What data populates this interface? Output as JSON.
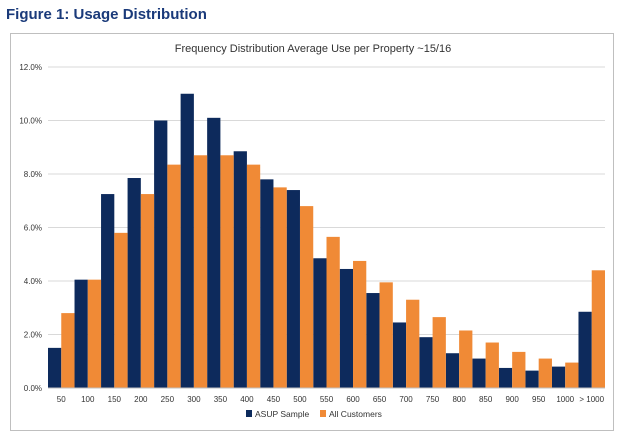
{
  "figure_title": "Figure 1: Usage Distribution",
  "chart_data": {
    "type": "bar",
    "title": "Frequency Distribution Average Use per Property ~15/16",
    "xlabel": "",
    "ylabel": "",
    "ylim": [
      0,
      12
    ],
    "ytick_format": "percent_1dp",
    "yticks": [
      "0.0%",
      "2.0%",
      "4.0%",
      "6.0%",
      "8.0%",
      "10.0%",
      "12.0%"
    ],
    "categories": [
      "50",
      "100",
      "150",
      "200",
      "250",
      "300",
      "350",
      "400",
      "450",
      "500",
      "550",
      "600",
      "650",
      "700",
      "750",
      "800",
      "850",
      "900",
      "950",
      "1000",
      "> 1000"
    ],
    "series": [
      {
        "name": "ASUP Sample",
        "color": "#0d2a5c",
        "values": [
          1.5,
          4.05,
          7.25,
          7.85,
          10.0,
          11.0,
          10.1,
          8.85,
          7.8,
          7.4,
          4.85,
          4.45,
          3.55,
          2.45,
          1.9,
          1.3,
          1.1,
          0.75,
          0.65,
          0.8,
          2.85
        ]
      },
      {
        "name": "All Customers",
        "color": "#f08a36",
        "values": [
          2.8,
          4.05,
          5.8,
          7.25,
          8.35,
          8.7,
          8.7,
          8.35,
          7.5,
          6.8,
          5.65,
          4.75,
          3.95,
          3.3,
          2.65,
          2.15,
          1.7,
          1.35,
          1.1,
          0.95,
          4.4
        ]
      }
    ],
    "grid": true,
    "legend_position": "bottom"
  }
}
